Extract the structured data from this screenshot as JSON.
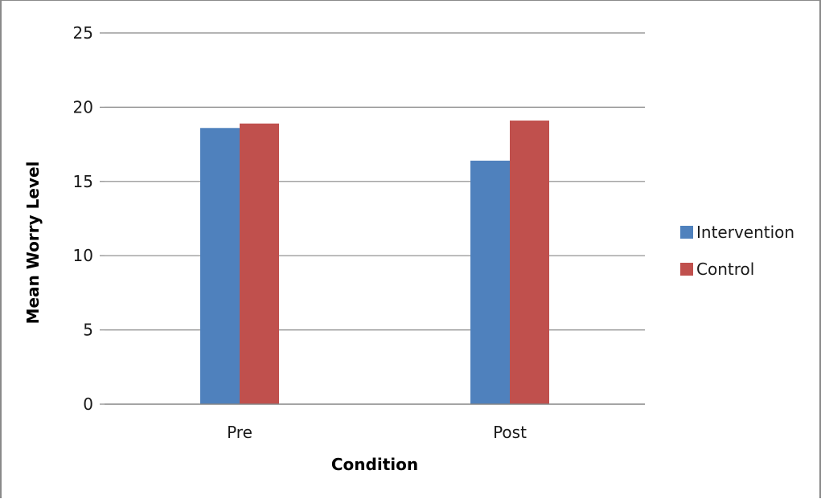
{
  "chart_data": {
    "type": "bar",
    "title": "",
    "xlabel": "Condition",
    "ylabel": "Mean Worry Level",
    "categories": [
      "Pre",
      "Post"
    ],
    "ylim": [
      0,
      25
    ],
    "yticks": [
      0,
      5,
      10,
      15,
      20,
      25
    ],
    "grid": true,
    "legend_position": "right",
    "series": [
      {
        "name": "Intervention",
        "color": "#4f81bd",
        "values": [
          18.6,
          16.4
        ]
      },
      {
        "name": "Control",
        "color": "#c0504d",
        "values": [
          18.9,
          19.1
        ]
      }
    ]
  }
}
